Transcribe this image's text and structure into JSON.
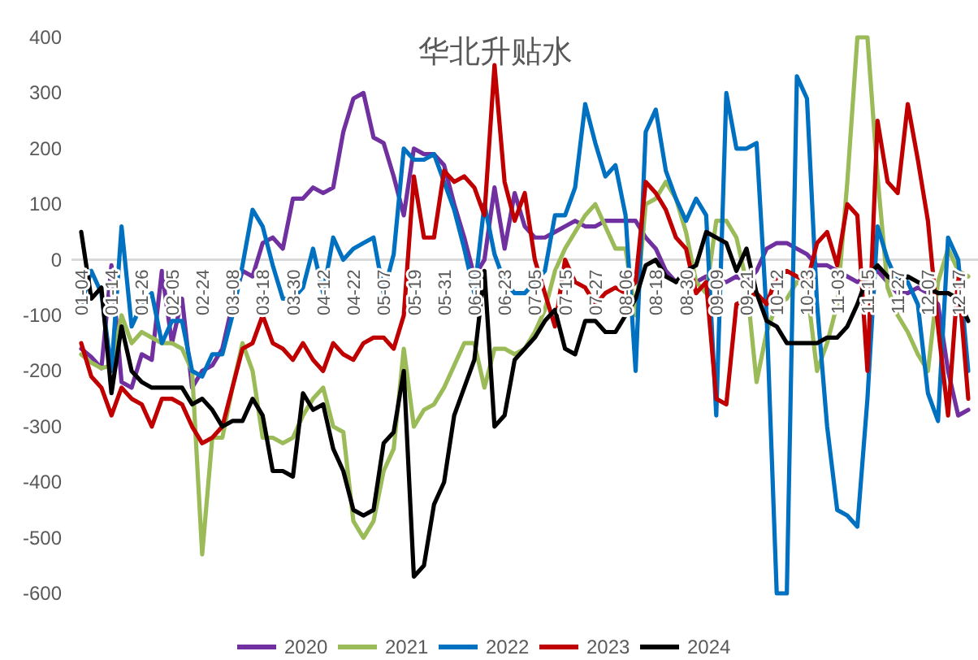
{
  "chart_data": {
    "type": "line",
    "title": "华北升贴水",
    "categories": [
      "01-04",
      null,
      null,
      "01-14",
      null,
      null,
      "01-26",
      null,
      null,
      "02-05",
      null,
      null,
      "02-24",
      null,
      null,
      "03-08",
      null,
      null,
      "03-18",
      null,
      null,
      "03-30",
      null,
      null,
      "04-12",
      null,
      null,
      "04-22",
      null,
      null,
      "05-07",
      null,
      null,
      "05-19",
      null,
      null,
      "05-31",
      null,
      null,
      "06-10",
      null,
      null,
      "06-23",
      null,
      null,
      "07-05",
      null,
      null,
      "07-15",
      null,
      null,
      "07-27",
      null,
      null,
      "08-06",
      null,
      null,
      "08-18",
      null,
      null,
      "08-30",
      null,
      null,
      "09-09",
      null,
      null,
      "09-21",
      null,
      null,
      "10-12",
      null,
      null,
      "10-23",
      null,
      null,
      "11-03",
      null,
      null,
      "11-15",
      null,
      null,
      "11-27",
      null,
      null,
      "12-07",
      null,
      null,
      "12-17",
      null
    ],
    "ylim": [
      -600,
      400
    ],
    "yticks": [
      -600,
      -500,
      -400,
      -300,
      -200,
      -100,
      0,
      100,
      200,
      300,
      400
    ],
    "legend": "bottom",
    "series": [
      {
        "name": "2020",
        "color": "#7030a0",
        "values": [
          -160,
          -175,
          -195,
          -10,
          -220,
          -230,
          -170,
          -180,
          -20,
          -150,
          -70,
          -230,
          -200,
          -190,
          -160,
          -80,
          -20,
          -30,
          30,
          40,
          20,
          110,
          110,
          130,
          120,
          130,
          230,
          290,
          300,
          220,
          210,
          150,
          80,
          200,
          190,
          190,
          170,
          100,
          40,
          -30,
          0,
          130,
          20,
          120,
          60,
          40,
          40,
          50,
          60,
          70,
          60,
          60,
          70,
          70,
          70,
          70,
          40,
          20,
          -20,
          -40,
          -30,
          -40,
          -30,
          -40,
          -40,
          -30,
          -40,
          -20,
          20,
          30,
          30,
          20,
          10,
          -10,
          -10,
          -20,
          -30,
          -40,
          -30,
          -20,
          -40,
          -60,
          -60,
          -50,
          -60,
          -80,
          -200,
          -280,
          -270
        ]
      },
      {
        "name": "2021",
        "color": "#9bbb59",
        "values": [
          -170,
          -185,
          -195,
          -190,
          -100,
          -150,
          -130,
          -140,
          -150,
          -150,
          -160,
          -200,
          -530,
          -320,
          -320,
          -230,
          -150,
          -200,
          -320,
          -320,
          -330,
          -320,
          -280,
          -250,
          -230,
          -300,
          -310,
          -470,
          -500,
          -470,
          -380,
          -340,
          -160,
          -300,
          -270,
          -260,
          -230,
          -190,
          -150,
          -150,
          -230,
          -160,
          -160,
          -170,
          -160,
          -130,
          -90,
          -20,
          20,
          50,
          80,
          100,
          60,
          20,
          20,
          -100,
          100,
          110,
          140,
          110,
          50,
          -40,
          -60,
          70,
          70,
          40,
          -40,
          -220,
          -130,
          -80,
          -70,
          -40,
          -50,
          -200,
          -150,
          -80,
          140,
          400,
          400,
          150,
          -50,
          -100,
          -130,
          -170,
          -200,
          -40,
          20,
          -20,
          -30
        ]
      },
      {
        "name": "2022",
        "color": "#0070c0",
        "values": [
          -80,
          -20,
          -60,
          -200,
          60,
          -120,
          -80,
          -60,
          -150,
          -110,
          -110,
          -200,
          -210,
          -170,
          -170,
          -100,
          -10,
          90,
          60,
          -10,
          -70,
          -70,
          -50,
          20,
          -60,
          40,
          0,
          20,
          30,
          40,
          -60,
          10,
          200,
          180,
          180,
          190,
          140,
          90,
          20,
          -60,
          100,
          10,
          -40,
          -60,
          -60,
          -40,
          -20,
          80,
          80,
          130,
          280,
          210,
          150,
          170,
          80,
          -200,
          230,
          270,
          160,
          110,
          70,
          110,
          80,
          -280,
          300,
          200,
          200,
          210,
          -100,
          -600,
          -600,
          330,
          290,
          -80,
          -300,
          -450,
          -460,
          -480,
          -250,
          60,
          0,
          -40,
          -40,
          -80,
          -240,
          -290,
          40,
          0,
          -200
        ]
      },
      {
        "name": "2023",
        "color": "#c00000",
        "values": [
          -150,
          -210,
          -230,
          -280,
          -230,
          -250,
          -260,
          -300,
          -250,
          -250,
          -260,
          -300,
          -330,
          -320,
          -300,
          -230,
          -160,
          -150,
          -100,
          -150,
          -160,
          -180,
          -150,
          -180,
          -200,
          -150,
          -170,
          -180,
          -150,
          -140,
          -140,
          -160,
          -100,
          150,
          40,
          40,
          160,
          140,
          150,
          130,
          80,
          350,
          140,
          70,
          120,
          0,
          -60,
          -120,
          0,
          -40,
          -50,
          -80,
          -60,
          -50,
          -60,
          -40,
          140,
          120,
          90,
          40,
          20,
          -60,
          -40,
          -250,
          -260,
          -80,
          -70,
          -60,
          -80,
          -30,
          -20,
          -30,
          -40,
          30,
          50,
          -10,
          100,
          80,
          -200,
          250,
          140,
          120,
          280,
          180,
          70,
          -120,
          -280,
          -30,
          -250
        ]
      },
      {
        "name": "2024",
        "color": "#000000",
        "values": [
          50,
          -70,
          -50,
          -240,
          -120,
          -200,
          -220,
          -230,
          -230,
          -230,
          -230,
          -260,
          -250,
          -270,
          -300,
          -290,
          -290,
          -250,
          -280,
          -380,
          -380,
          -390,
          -240,
          -270,
          -260,
          -340,
          -380,
          -450,
          -460,
          -450,
          -330,
          -310,
          -200,
          -570,
          -550,
          -440,
          -400,
          -280,
          -230,
          -180,
          -20,
          -300,
          -280,
          -180,
          -160,
          -140,
          -110,
          -90,
          -160,
          -170,
          -110,
          -110,
          -130,
          -130,
          -100,
          -70,
          -10,
          0,
          -30,
          -40,
          -20,
          -10,
          50,
          40,
          30,
          -20,
          20,
          -60,
          -110,
          -120,
          -150,
          -150,
          -150,
          -150,
          -140,
          -140,
          -120,
          -80,
          -30,
          -10,
          -30,
          -40,
          -30,
          -40,
          -50,
          -60,
          -60,
          -70,
          -110
        ]
      }
    ]
  }
}
